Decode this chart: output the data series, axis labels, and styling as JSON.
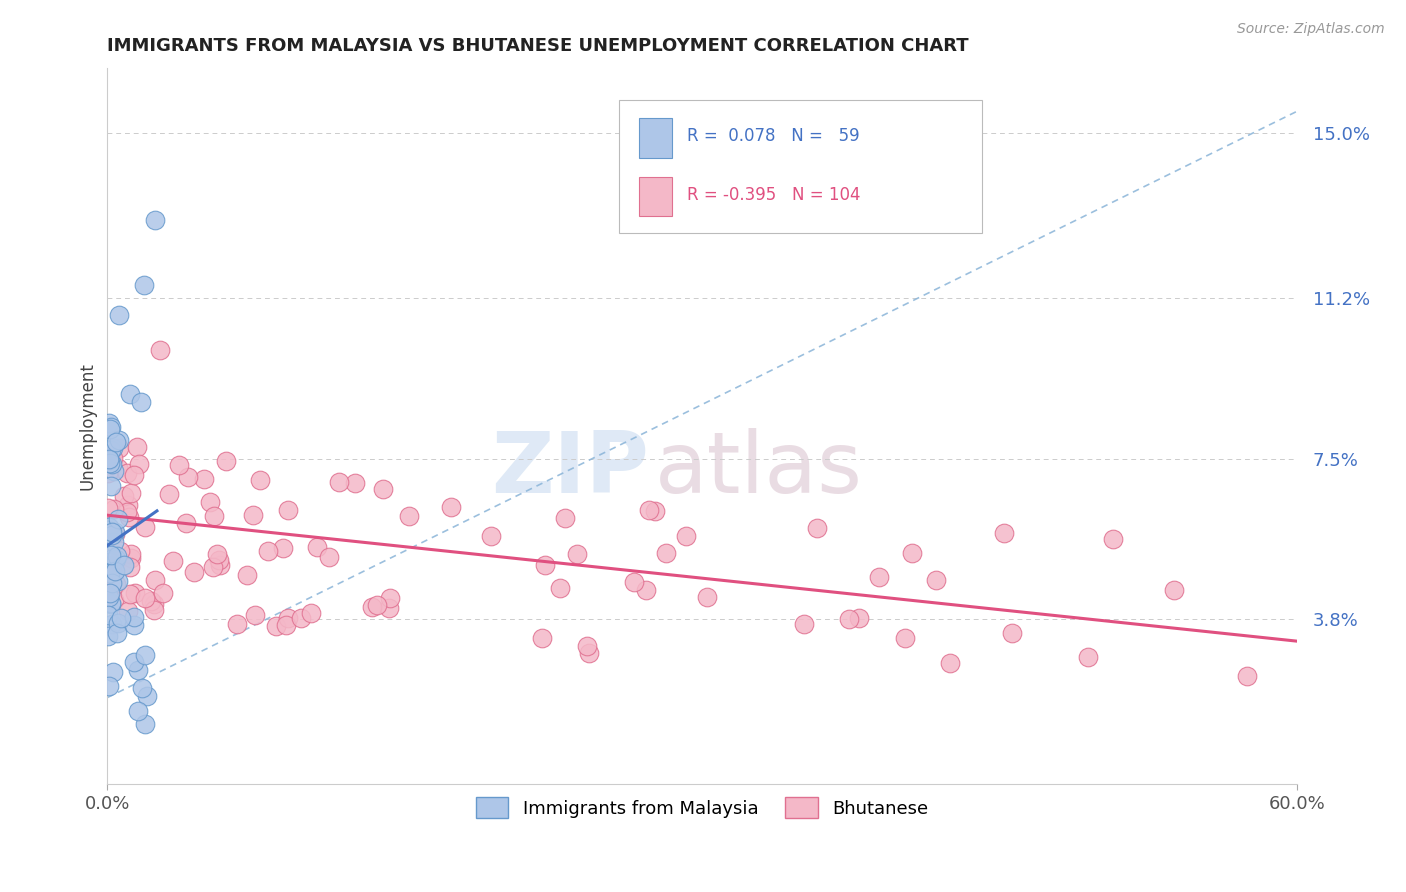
{
  "title": "IMMIGRANTS FROM MALAYSIA VS BHUTANESE UNEMPLOYMENT CORRELATION CHART",
  "source_text": "Source: ZipAtlas.com",
  "ylabel": "Unemployment",
  "xlim": [
    0.0,
    0.6
  ],
  "ylim": [
    0.0,
    0.165
  ],
  "yticks": [
    0.038,
    0.075,
    0.112,
    0.15
  ],
  "ytick_labels": [
    "3.8%",
    "7.5%",
    "11.2%",
    "15.0%"
  ],
  "xtick_labels": [
    "0.0%",
    "60.0%"
  ],
  "series1_color": "#aec6e8",
  "series1_edge": "#6699cc",
  "series2_color": "#f4b8c8",
  "series2_edge": "#e07090",
  "trend1_color": "#4472c4",
  "trend2_color": "#e05080",
  "diag_color": "#8ab4d8",
  "R1": 0.078,
  "N1": 59,
  "R2": -0.395,
  "N2": 104,
  "legend_label1": "Immigrants from Malaysia",
  "legend_label2": "Bhutanese",
  "watermark_zip": "ZIP",
  "watermark_atlas": "atlas",
  "title_fontsize": 13,
  "tick_fontsize": 13,
  "legend_fontsize": 13
}
